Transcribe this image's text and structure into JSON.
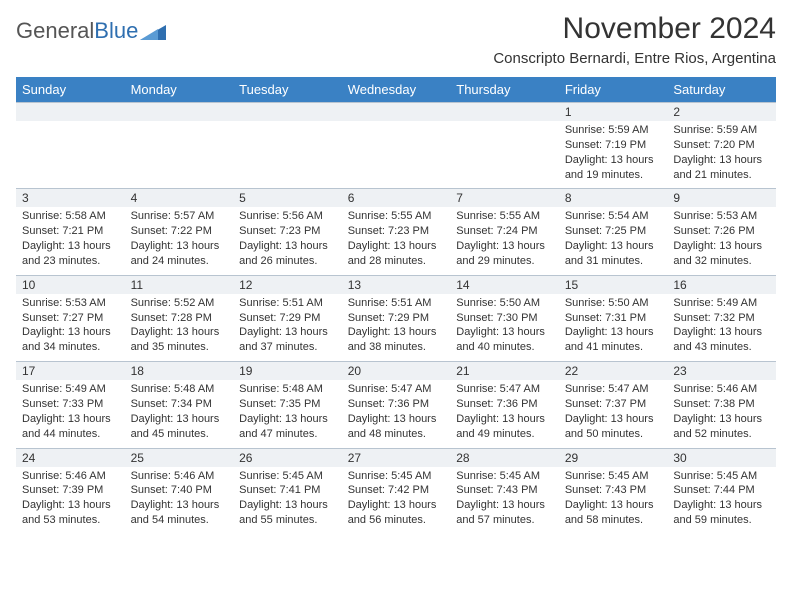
{
  "logo": {
    "text_general": "General",
    "text_blue": "Blue"
  },
  "title": "November 2024",
  "location": "Conscripto Bernardi, Entre Rios, Argentina",
  "weekday_header_bg": "#3a81c4",
  "weekday_header_fg": "#ffffff",
  "daynum_bg": "#eef1f4",
  "border_color": "#b8c4d0",
  "weekdays": [
    "Sunday",
    "Monday",
    "Tuesday",
    "Wednesday",
    "Thursday",
    "Friday",
    "Saturday"
  ],
  "weeks": [
    {
      "nums": [
        "",
        "",
        "",
        "",
        "",
        "1",
        "2"
      ],
      "cells": [
        null,
        null,
        null,
        null,
        null,
        {
          "sunrise": "Sunrise: 5:59 AM",
          "sunset": "Sunset: 7:19 PM",
          "day1": "Daylight: 13 hours",
          "day2": "and 19 minutes."
        },
        {
          "sunrise": "Sunrise: 5:59 AM",
          "sunset": "Sunset: 7:20 PM",
          "day1": "Daylight: 13 hours",
          "day2": "and 21 minutes."
        }
      ]
    },
    {
      "nums": [
        "3",
        "4",
        "5",
        "6",
        "7",
        "8",
        "9"
      ],
      "cells": [
        {
          "sunrise": "Sunrise: 5:58 AM",
          "sunset": "Sunset: 7:21 PM",
          "day1": "Daylight: 13 hours",
          "day2": "and 23 minutes."
        },
        {
          "sunrise": "Sunrise: 5:57 AM",
          "sunset": "Sunset: 7:22 PM",
          "day1": "Daylight: 13 hours",
          "day2": "and 24 minutes."
        },
        {
          "sunrise": "Sunrise: 5:56 AM",
          "sunset": "Sunset: 7:23 PM",
          "day1": "Daylight: 13 hours",
          "day2": "and 26 minutes."
        },
        {
          "sunrise": "Sunrise: 5:55 AM",
          "sunset": "Sunset: 7:23 PM",
          "day1": "Daylight: 13 hours",
          "day2": "and 28 minutes."
        },
        {
          "sunrise": "Sunrise: 5:55 AM",
          "sunset": "Sunset: 7:24 PM",
          "day1": "Daylight: 13 hours",
          "day2": "and 29 minutes."
        },
        {
          "sunrise": "Sunrise: 5:54 AM",
          "sunset": "Sunset: 7:25 PM",
          "day1": "Daylight: 13 hours",
          "day2": "and 31 minutes."
        },
        {
          "sunrise": "Sunrise: 5:53 AM",
          "sunset": "Sunset: 7:26 PM",
          "day1": "Daylight: 13 hours",
          "day2": "and 32 minutes."
        }
      ]
    },
    {
      "nums": [
        "10",
        "11",
        "12",
        "13",
        "14",
        "15",
        "16"
      ],
      "cells": [
        {
          "sunrise": "Sunrise: 5:53 AM",
          "sunset": "Sunset: 7:27 PM",
          "day1": "Daylight: 13 hours",
          "day2": "and 34 minutes."
        },
        {
          "sunrise": "Sunrise: 5:52 AM",
          "sunset": "Sunset: 7:28 PM",
          "day1": "Daylight: 13 hours",
          "day2": "and 35 minutes."
        },
        {
          "sunrise": "Sunrise: 5:51 AM",
          "sunset": "Sunset: 7:29 PM",
          "day1": "Daylight: 13 hours",
          "day2": "and 37 minutes."
        },
        {
          "sunrise": "Sunrise: 5:51 AM",
          "sunset": "Sunset: 7:29 PM",
          "day1": "Daylight: 13 hours",
          "day2": "and 38 minutes."
        },
        {
          "sunrise": "Sunrise: 5:50 AM",
          "sunset": "Sunset: 7:30 PM",
          "day1": "Daylight: 13 hours",
          "day2": "and 40 minutes."
        },
        {
          "sunrise": "Sunrise: 5:50 AM",
          "sunset": "Sunset: 7:31 PM",
          "day1": "Daylight: 13 hours",
          "day2": "and 41 minutes."
        },
        {
          "sunrise": "Sunrise: 5:49 AM",
          "sunset": "Sunset: 7:32 PM",
          "day1": "Daylight: 13 hours",
          "day2": "and 43 minutes."
        }
      ]
    },
    {
      "nums": [
        "17",
        "18",
        "19",
        "20",
        "21",
        "22",
        "23"
      ],
      "cells": [
        {
          "sunrise": "Sunrise: 5:49 AM",
          "sunset": "Sunset: 7:33 PM",
          "day1": "Daylight: 13 hours",
          "day2": "and 44 minutes."
        },
        {
          "sunrise": "Sunrise: 5:48 AM",
          "sunset": "Sunset: 7:34 PM",
          "day1": "Daylight: 13 hours",
          "day2": "and 45 minutes."
        },
        {
          "sunrise": "Sunrise: 5:48 AM",
          "sunset": "Sunset: 7:35 PM",
          "day1": "Daylight: 13 hours",
          "day2": "and 47 minutes."
        },
        {
          "sunrise": "Sunrise: 5:47 AM",
          "sunset": "Sunset: 7:36 PM",
          "day1": "Daylight: 13 hours",
          "day2": "and 48 minutes."
        },
        {
          "sunrise": "Sunrise: 5:47 AM",
          "sunset": "Sunset: 7:36 PM",
          "day1": "Daylight: 13 hours",
          "day2": "and 49 minutes."
        },
        {
          "sunrise": "Sunrise: 5:47 AM",
          "sunset": "Sunset: 7:37 PM",
          "day1": "Daylight: 13 hours",
          "day2": "and 50 minutes."
        },
        {
          "sunrise": "Sunrise: 5:46 AM",
          "sunset": "Sunset: 7:38 PM",
          "day1": "Daylight: 13 hours",
          "day2": "and 52 minutes."
        }
      ]
    },
    {
      "nums": [
        "24",
        "25",
        "26",
        "27",
        "28",
        "29",
        "30"
      ],
      "cells": [
        {
          "sunrise": "Sunrise: 5:46 AM",
          "sunset": "Sunset: 7:39 PM",
          "day1": "Daylight: 13 hours",
          "day2": "and 53 minutes."
        },
        {
          "sunrise": "Sunrise: 5:46 AM",
          "sunset": "Sunset: 7:40 PM",
          "day1": "Daylight: 13 hours",
          "day2": "and 54 minutes."
        },
        {
          "sunrise": "Sunrise: 5:45 AM",
          "sunset": "Sunset: 7:41 PM",
          "day1": "Daylight: 13 hours",
          "day2": "and 55 minutes."
        },
        {
          "sunrise": "Sunrise: 5:45 AM",
          "sunset": "Sunset: 7:42 PM",
          "day1": "Daylight: 13 hours",
          "day2": "and 56 minutes."
        },
        {
          "sunrise": "Sunrise: 5:45 AM",
          "sunset": "Sunset: 7:43 PM",
          "day1": "Daylight: 13 hours",
          "day2": "and 57 minutes."
        },
        {
          "sunrise": "Sunrise: 5:45 AM",
          "sunset": "Sunset: 7:43 PM",
          "day1": "Daylight: 13 hours",
          "day2": "and 58 minutes."
        },
        {
          "sunrise": "Sunrise: 5:45 AM",
          "sunset": "Sunset: 7:44 PM",
          "day1": "Daylight: 13 hours",
          "day2": "and 59 minutes."
        }
      ]
    }
  ]
}
